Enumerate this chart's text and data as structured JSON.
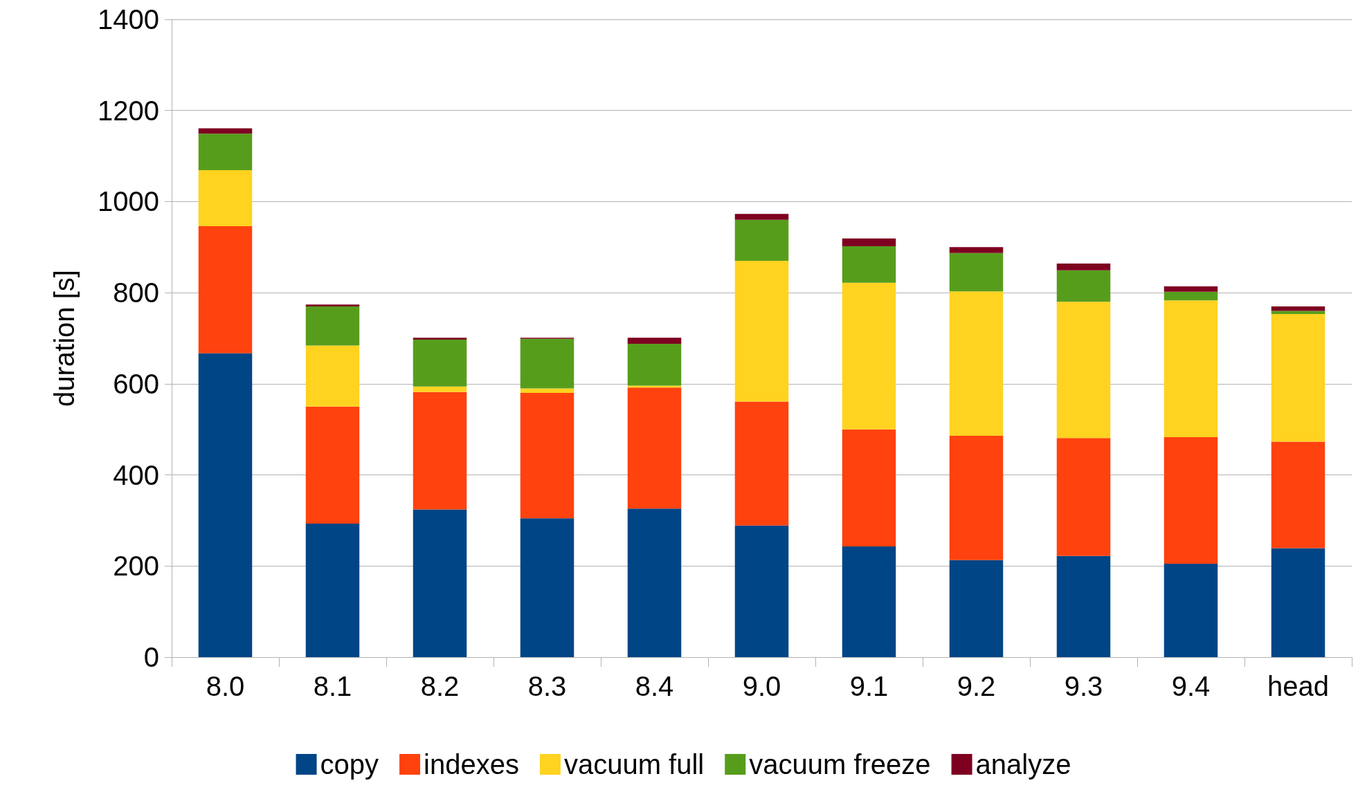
{
  "chart_data": {
    "type": "bar",
    "stacked": true,
    "ylabel": "duration [s]",
    "categories": [
      "8.0",
      "8.1",
      "8.2",
      "8.3",
      "8.4",
      "9.0",
      "9.1",
      "9.2",
      "9.3",
      "9.4",
      "head"
    ],
    "series": [
      {
        "name": "copy",
        "color": "#004586",
        "values": [
          667,
          293,
          324,
          305,
          326,
          289,
          243,
          213,
          222,
          205,
          239
        ]
      },
      {
        "name": "indexes",
        "color": "#ff420e",
        "values": [
          279,
          257,
          258,
          275,
          266,
          272,
          257,
          273,
          259,
          278,
          234
        ]
      },
      {
        "name": "vacuum full",
        "color": "#ffd320",
        "values": [
          123,
          134,
          12,
          10,
          4,
          309,
          322,
          317,
          299,
          300,
          280
        ]
      },
      {
        "name": "vacuum freeze",
        "color": "#579d1c",
        "values": [
          80,
          86,
          103,
          109,
          92,
          90,
          80,
          84,
          69,
          19,
          7
        ]
      },
      {
        "name": "analyze",
        "color": "#7e0021",
        "values": [
          12,
          4,
          4,
          2,
          13,
          13,
          17,
          13,
          15,
          12,
          10
        ]
      }
    ],
    "ylim": [
      0,
      1400
    ],
    "yticks": [
      0,
      200,
      400,
      600,
      800,
      1000,
      1200,
      1400
    ],
    "grid": "y",
    "legend": "bottom"
  }
}
